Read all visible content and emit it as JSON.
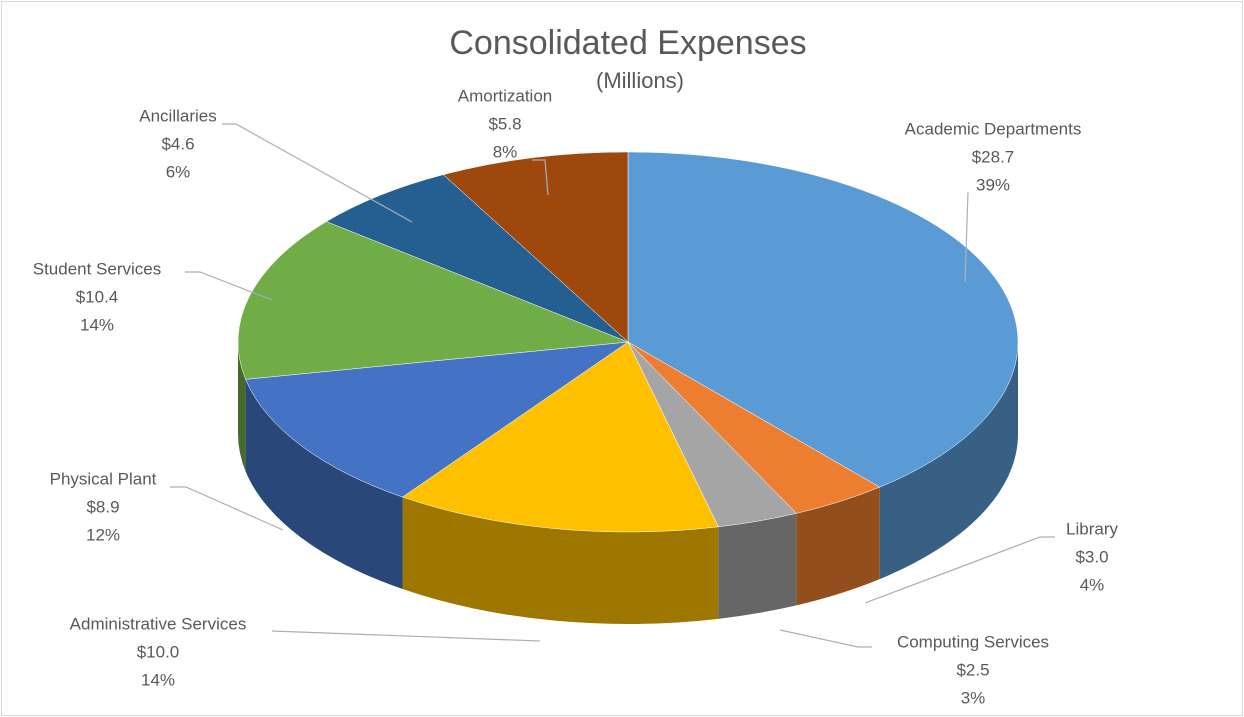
{
  "chart_data": {
    "type": "pie3d",
    "title": "Consolidated Expenses",
    "subtitle": "(Millions)",
    "categories": [
      "Academic Departments",
      "Library",
      "Computing Services",
      "Administrative Services",
      "Physical Plant",
      "Student Services",
      "Ancillaries",
      "Amortization"
    ],
    "values": [
      28.7,
      3.0,
      2.5,
      10.0,
      8.9,
      10.4,
      4.6,
      5.8
    ],
    "value_labels": [
      "$28.7",
      "$3.0",
      "$2.5",
      "$10.0",
      "$8.9",
      "$10.4",
      "$4.6",
      "$5.8"
    ],
    "percentages": [
      39,
      4,
      3,
      14,
      12,
      14,
      6,
      8
    ],
    "percentage_labels": [
      "39%",
      "4%",
      "3%",
      "14%",
      "12%",
      "14%",
      "6%",
      "8%"
    ],
    "colors": [
      "#5b9bd5",
      "#ed7d31",
      "#a5a5a5",
      "#ffc000",
      "#4472c4",
      "#70ad47",
      "#255e91",
      "#9e480e"
    ]
  }
}
